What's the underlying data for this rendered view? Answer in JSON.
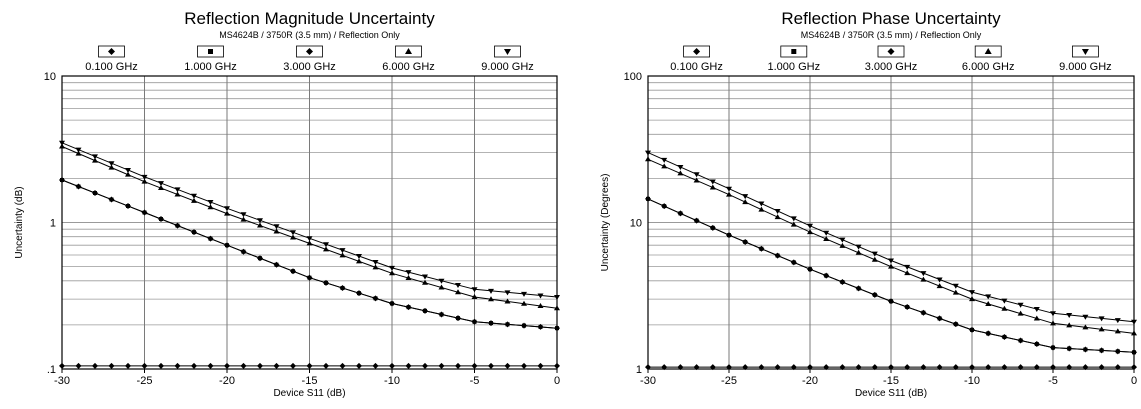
{
  "chart_data": [
    {
      "type": "line",
      "title": "Reflection Magnitude Uncertainty",
      "subtitle": "MS4624B / 3750R (3.5 mm) / Reflection Only",
      "xlabel": "Device S11 (dB)",
      "ylabel": "Uncertainty (dB)",
      "xlim": [
        -30,
        0
      ],
      "ylim": [
        0.1,
        10
      ],
      "yscale": "log",
      "grid": true,
      "legend": "top",
      "x_ticks": [
        "-30",
        "-25",
        "-20",
        "-15",
        "-10",
        "-5",
        "0"
      ],
      "y_ticks": [
        ".1",
        "1",
        "10"
      ],
      "x": [
        -30,
        -25,
        -20,
        -15,
        -10,
        -5,
        0
      ],
      "series": [
        {
          "name": "0.100 GHz",
          "marker": "diamond",
          "values": [
            0.105,
            0.105,
            0.105,
            0.105,
            0.105,
            0.105,
            0.105
          ]
        },
        {
          "name": "1.000 GHz",
          "marker": "square",
          "values": [
            1.95,
            1.17,
            0.7,
            0.42,
            0.28,
            0.21,
            0.19
          ]
        },
        {
          "name": "3.000 GHz",
          "marker": "diamond",
          "values": [
            1.95,
            1.17,
            0.7,
            0.42,
            0.28,
            0.21,
            0.19
          ]
        },
        {
          "name": "6.000 GHz",
          "marker": "triangle-up",
          "values": [
            3.3,
            1.9,
            1.15,
            0.72,
            0.45,
            0.31,
            0.26
          ]
        },
        {
          "name": "9.000 GHz",
          "marker": "triangle-down",
          "values": [
            3.5,
            2.05,
            1.25,
            0.78,
            0.49,
            0.35,
            0.31
          ]
        }
      ]
    },
    {
      "type": "line",
      "title": "Reflection Phase Uncertainty",
      "subtitle": "MS4624B / 3750R (3.5 mm) / Reflection Only",
      "xlabel": "Device S11 (dB)",
      "ylabel": "Uncertainty (Degrees)",
      "xlim": [
        -30,
        0
      ],
      "ylim": [
        1,
        100
      ],
      "yscale": "log",
      "grid": true,
      "legend": "top",
      "x_ticks": [
        "-30",
        "-25",
        "-20",
        "-15",
        "-10",
        "-5",
        "0"
      ],
      "y_ticks": [
        "1",
        "10",
        "100"
      ],
      "x": [
        -30,
        -25,
        -20,
        -15,
        -10,
        -5,
        0
      ],
      "series": [
        {
          "name": "0.100 GHz",
          "marker": "diamond",
          "values": [
            1.03,
            1.03,
            1.03,
            1.03,
            1.03,
            1.03,
            1.03
          ]
        },
        {
          "name": "1.000 GHz",
          "marker": "square",
          "values": [
            14.5,
            8.2,
            4.8,
            2.9,
            1.85,
            1.4,
            1.3
          ]
        },
        {
          "name": "3.000 GHz",
          "marker": "diamond",
          "values": [
            14.5,
            8.2,
            4.8,
            2.9,
            1.85,
            1.4,
            1.3
          ]
        },
        {
          "name": "6.000 GHz",
          "marker": "triangle-up",
          "values": [
            27,
            15.5,
            8.6,
            5.0,
            3.0,
            2.05,
            1.75
          ]
        },
        {
          "name": "9.000 GHz",
          "marker": "triangle-down",
          "values": [
            30,
            17,
            9.5,
            5.5,
            3.35,
            2.4,
            2.1
          ]
        }
      ]
    }
  ]
}
